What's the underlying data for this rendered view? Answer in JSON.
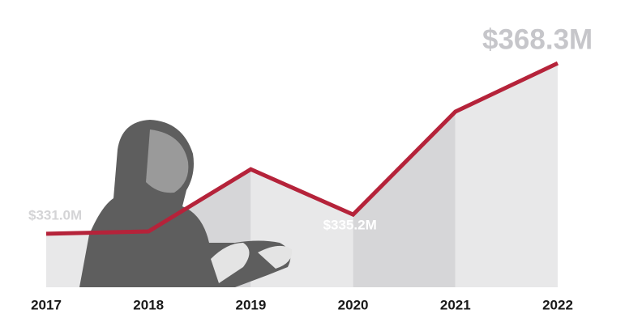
{
  "chart_data": {
    "type": "line",
    "categories": [
      "2017",
      "2018",
      "2019",
      "2020",
      "2021",
      "2022"
    ],
    "values": [
      331.0,
      331.5,
      345.1,
      335.2,
      357.7,
      368.3
    ],
    "value_labels": [
      "$331.0M",
      null,
      null,
      "$335.2M",
      null,
      "$368.3M"
    ],
    "color": "#b5233a",
    "ylim": [
      319.3,
      371.5
    ]
  }
}
